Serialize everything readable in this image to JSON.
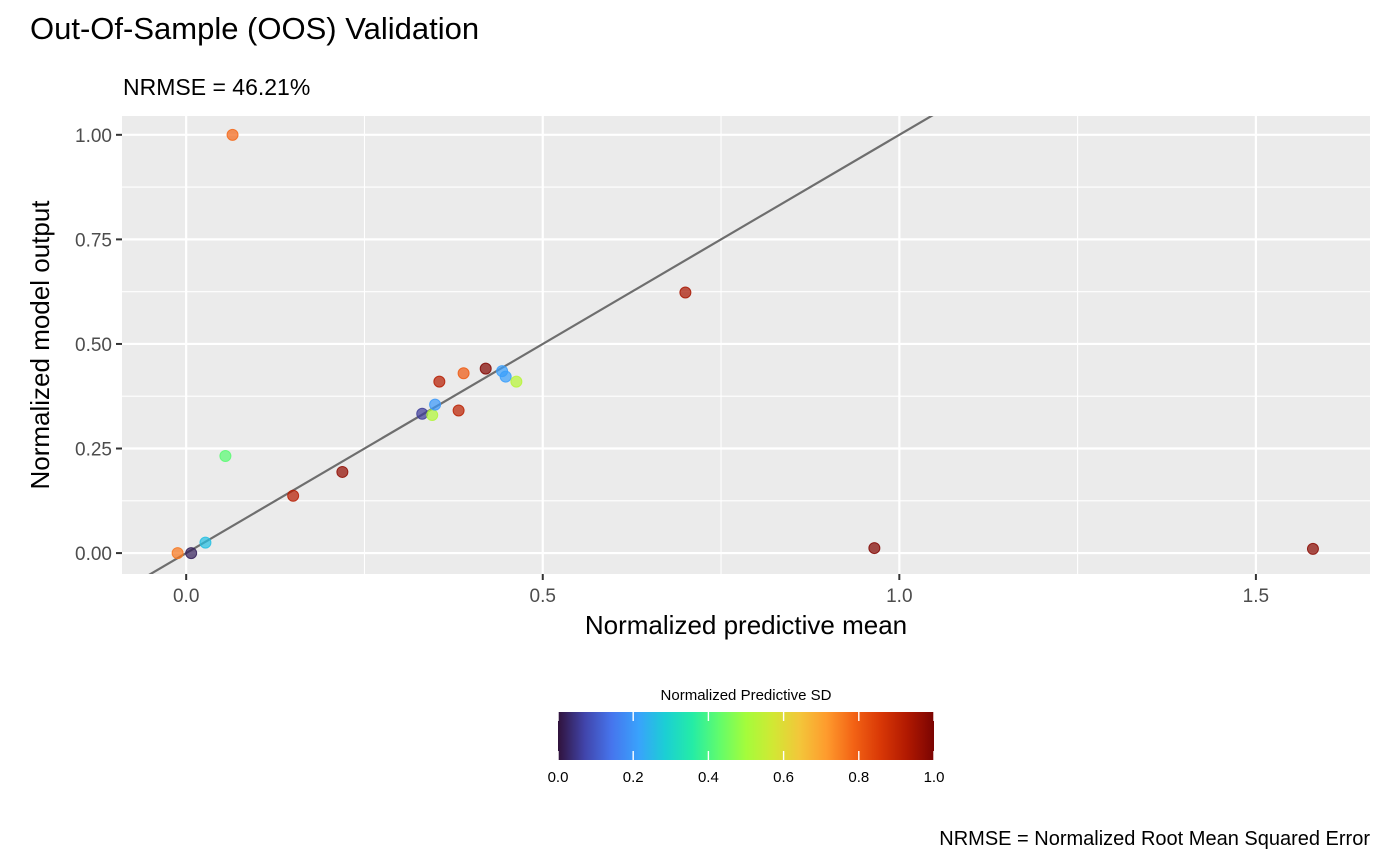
{
  "chart_data": {
    "type": "scatter",
    "title": "Out-Of-Sample (OOS) Validation",
    "subtitle": "NRMSE = 46.21%",
    "caption": "NRMSE = Normalized Root Mean Squared Error",
    "xlabel": "Normalized predictive mean",
    "ylabel": "Normalized model output",
    "xlim": [
      -0.09,
      1.66
    ],
    "ylim": [
      -0.05,
      1.045
    ],
    "x_ticks": [
      "0.0",
      "0.5",
      "1.0",
      "1.5"
    ],
    "y_ticks": [
      "0.00",
      "0.25",
      "0.50",
      "0.75",
      "1.00"
    ],
    "grid": true,
    "reference_line": {
      "slope": 1,
      "intercept": 0,
      "color": "#6e6e6e"
    },
    "points": [
      {
        "x": 0.065,
        "y": 1.0,
        "sd": 0.78
      },
      {
        "x": 0.055,
        "y": 0.232,
        "sd": 0.42
      },
      {
        "x": -0.012,
        "y": 0.0,
        "sd": 0.76
      },
      {
        "x": 0.007,
        "y": 0.0,
        "sd": 0.02
      },
      {
        "x": 0.027,
        "y": 0.025,
        "sd": 0.26
      },
      {
        "x": 0.15,
        "y": 0.137,
        "sd": 0.92
      },
      {
        "x": 0.219,
        "y": 0.194,
        "sd": 0.97
      },
      {
        "x": 0.331,
        "y": 0.333,
        "sd": 0.06
      },
      {
        "x": 0.345,
        "y": 0.33,
        "sd": 0.52
      },
      {
        "x": 0.349,
        "y": 0.355,
        "sd": 0.2
      },
      {
        "x": 0.355,
        "y": 0.41,
        "sd": 0.92
      },
      {
        "x": 0.382,
        "y": 0.341,
        "sd": 0.91
      },
      {
        "x": 0.389,
        "y": 0.43,
        "sd": 0.8
      },
      {
        "x": 0.42,
        "y": 0.441,
        "sd": 0.99
      },
      {
        "x": 0.443,
        "y": 0.435,
        "sd": 0.21
      },
      {
        "x": 0.448,
        "y": 0.422,
        "sd": 0.21
      },
      {
        "x": 0.463,
        "y": 0.41,
        "sd": 0.53
      },
      {
        "x": 0.7,
        "y": 0.623,
        "sd": 0.94
      },
      {
        "x": 0.965,
        "y": 0.012,
        "sd": 0.99
      },
      {
        "x": 1.58,
        "y": 0.01,
        "sd": 0.98
      }
    ],
    "colorbar": {
      "title": "Normalized Predictive SD",
      "range": [
        0,
        1
      ],
      "ticks": [
        "0.0",
        "0.2",
        "0.4",
        "0.6",
        "0.8",
        "1.0"
      ],
      "palette": [
        "#30123b",
        "#4145ab",
        "#4675ed",
        "#39a2fc",
        "#1bcfd4",
        "#24eca6",
        "#61fc6c",
        "#a4fc3b",
        "#d1e834",
        "#f3c63a",
        "#fe9b2d",
        "#f36315",
        "#d93806",
        "#b11901",
        "#7a0402"
      ],
      "position": "bottom"
    }
  }
}
